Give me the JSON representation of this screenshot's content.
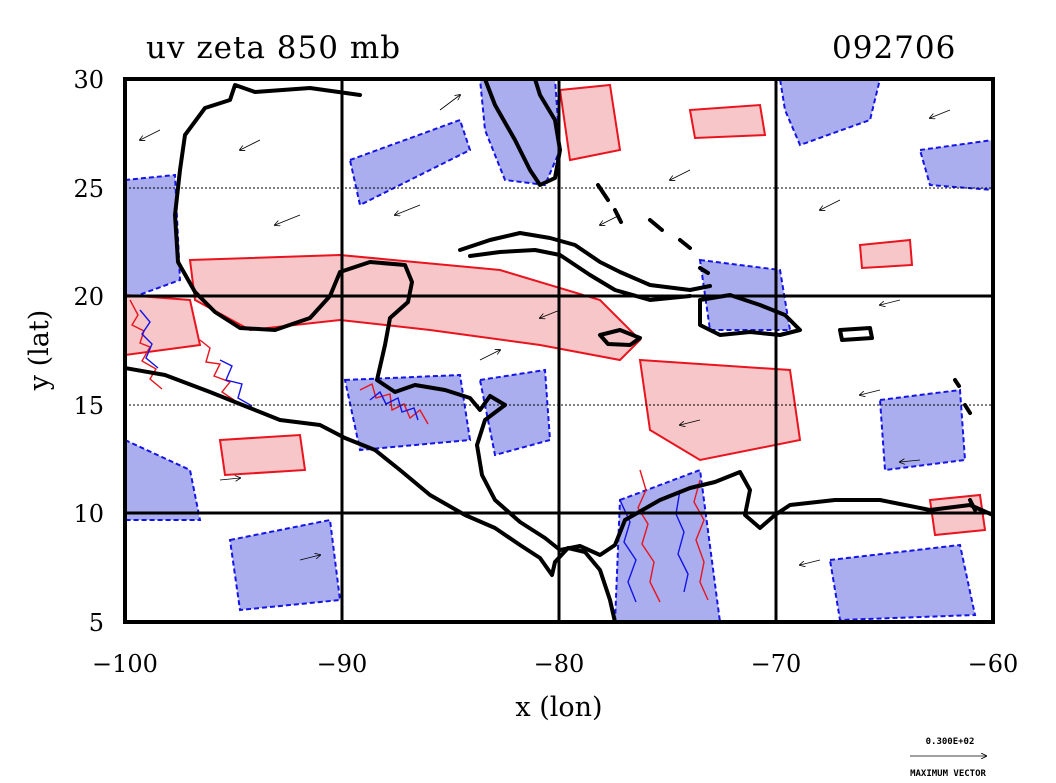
{
  "title": "uv zeta 850 mb",
  "date_code": "092706",
  "colors": {
    "positive_fill": "#f6c6c8",
    "positive_line": "#e8141e",
    "negative_fill": "#aaaeee",
    "negative_line": "#1414e6",
    "coast": "#000000",
    "vector": "#000000"
  },
  "chart_data": {
    "type": "map",
    "xlabel": "x (lon)",
    "ylabel": "y (lat)",
    "xlim": [
      -100,
      -60
    ],
    "ylim": [
      5,
      30
    ],
    "xticks": [
      -100,
      -90,
      -80,
      -70,
      -60
    ],
    "yticks": [
      5,
      10,
      15,
      20,
      25,
      30
    ],
    "xtick_labels": [
      "−100",
      "−90",
      "−80",
      "−70",
      "−60"
    ],
    "ytick_labels": [
      "5",
      "10",
      "15",
      "20",
      "25",
      "30"
    ],
    "grid": true,
    "layers": [
      "relative vorticity contours (positive shaded red, negative shaded blue)",
      "wind vectors (u,v)",
      "coastlines"
    ]
  },
  "vector_key": {
    "magnitude_label": "0.300E+02",
    "caption": "MAXIMUM VECTOR"
  }
}
